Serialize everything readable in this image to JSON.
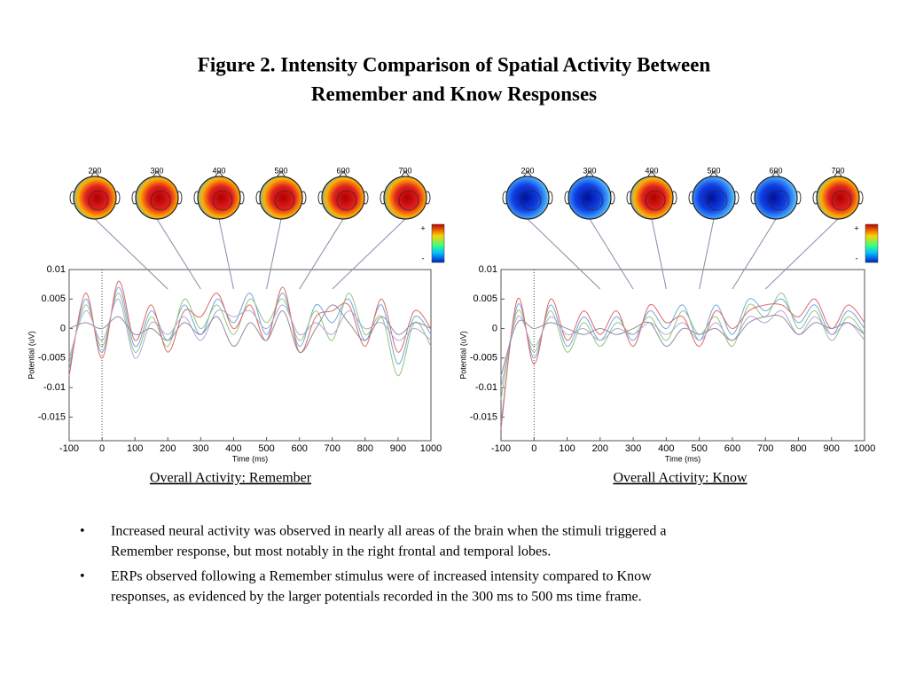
{
  "title_lines": [
    "Figure 2.  Intensity Comparison of Spatial Activity Between",
    "Remember and Know Responses"
  ],
  "bullets": [
    [
      "Increased neural activity was observed in nearly all areas of the brain when the stimuli triggered a",
      "Remember response, but most notably in the right frontal and temporal lobes."
    ],
    [
      "ERPs observed following a Remember stimulus were of increased intensity compared to Know",
      "responses, as evidenced by the larger potentials recorded in the 300 ms to 500 ms time frame."
    ]
  ],
  "bullet_symbol": "•",
  "chart_data": [
    {
      "type": "line",
      "caption": "Overall Activity: Remember",
      "x_label": "Time (ms)",
      "y_label": "Potential (uV)",
      "topomap_labels": [
        "200",
        "300",
        "400",
        "500",
        "600",
        "700"
      ],
      "colorbar_labels": [
        "+",
        "-"
      ],
      "x": [
        -100,
        -50,
        0,
        50,
        100,
        150,
        200,
        250,
        300,
        350,
        400,
        450,
        500,
        550,
        600,
        650,
        700,
        750,
        800,
        850,
        900,
        950,
        1000
      ],
      "xlim": [
        -100,
        1000
      ],
      "xticks": [
        -100,
        0,
        100,
        200,
        300,
        400,
        500,
        600,
        700,
        800,
        900,
        1000
      ],
      "ylim": [
        -0.019,
        0.01
      ],
      "yticks": [
        0.01,
        0.005,
        0,
        -0.005,
        -0.01,
        -0.015
      ],
      "series": [
        {
          "color": "#6fa8dc",
          "values": [
            -0.007,
            0.005,
            -0.004,
            0.007,
            -0.003,
            0.003,
            -0.002,
            0.004,
            -0.001,
            0.005,
            0.001,
            0.006,
            -0.001,
            0.006,
            -0.003,
            0.004,
            0.001,
            0.005,
            -0.002,
            0.004,
            -0.006,
            0.002,
            -0.001
          ]
        },
        {
          "color": "#93c47d",
          "values": [
            -0.006,
            0.004,
            -0.003,
            0.006,
            -0.004,
            0.002,
            -0.003,
            0.005,
            0,
            0.004,
            -0.001,
            0.005,
            0.001,
            0.005,
            -0.002,
            0.003,
            -0.002,
            0.006,
            -0.001,
            0.002,
            -0.008,
            0.001,
            -0.003
          ]
        },
        {
          "color": "#e06666",
          "values": [
            -0.008,
            0.006,
            -0.005,
            0.008,
            -0.002,
            0.004,
            -0.004,
            0.003,
            0.002,
            0.006,
            0,
            0.004,
            -0.002,
            0.007,
            -0.004,
            0.002,
            0.003,
            0.004,
            -0.003,
            0.005,
            -0.004,
            0.003,
            0
          ]
        },
        {
          "color": "#b4a7d6",
          "values": [
            -0.005,
            0.003,
            -0.002,
            0.005,
            -0.005,
            0.001,
            -0.001,
            0.002,
            -0.002,
            0.003,
            0.002,
            0.003,
            0,
            0.004,
            -0.001,
            0.001,
            -0.001,
            0.003,
            0,
            0.001,
            -0.002,
            0,
            -0.002
          ]
        },
        {
          "color": "#8e8e9e",
          "values": [
            0,
            0.001,
            0,
            0.002,
            -0.001,
            0,
            -0.002,
            0.001,
            -0.001,
            0.002,
            -0.003,
            0.001,
            -0.002,
            0.003,
            -0.004,
            0,
            0.004,
            0.001,
            -0.002,
            0.002,
            -0.001,
            0.001,
            0
          ]
        }
      ]
    },
    {
      "type": "line",
      "caption": "Overall Activity: Know",
      "x_label": "Time (ms)",
      "y_label": "Potential (uV)",
      "topomap_labels": [
        "200",
        "300",
        "400",
        "500",
        "600",
        "700"
      ],
      "colorbar_labels": [
        "+",
        "-"
      ],
      "x": [
        -100,
        -50,
        0,
        50,
        100,
        150,
        200,
        250,
        300,
        350,
        400,
        450,
        500,
        550,
        600,
        650,
        700,
        750,
        800,
        850,
        900,
        950,
        1000
      ],
      "xlim": [
        -100,
        1000
      ],
      "xticks": [
        -100,
        0,
        100,
        200,
        300,
        400,
        500,
        600,
        700,
        800,
        900,
        1000
      ],
      "ylim": [
        -0.019,
        0.01
      ],
      "yticks": [
        0.01,
        0.005,
        0,
        -0.005,
        -0.01,
        -0.015
      ],
      "series": [
        {
          "color": "#6fa8dc",
          "values": [
            -0.016,
            0.004,
            -0.005,
            0.004,
            -0.003,
            0.002,
            -0.002,
            0.002,
            -0.002,
            0.003,
            0,
            0.004,
            -0.002,
            0.004,
            -0.001,
            0.005,
            0.003,
            0.005,
            0.001,
            0.004,
            -0.001,
            0.003,
            0
          ]
        },
        {
          "color": "#93c47d",
          "values": [
            -0.012,
            0.003,
            -0.004,
            0.003,
            -0.004,
            0.001,
            -0.003,
            0.001,
            -0.001,
            0.002,
            -0.002,
            0.003,
            -0.001,
            0.002,
            -0.003,
            0.004,
            0.002,
            0.006,
            0,
            0.003,
            -0.002,
            0.002,
            -0.001
          ]
        },
        {
          "color": "#e06666",
          "values": [
            -0.017,
            0.005,
            -0.006,
            0.005,
            -0.002,
            0.003,
            -0.001,
            0.003,
            -0.003,
            0.004,
            0.001,
            0.002,
            -0.003,
            0.003,
            0,
            0.003,
            0.004,
            0.004,
            0.002,
            0.005,
            0,
            0.004,
            0.001
          ]
        },
        {
          "color": "#b4a7d6",
          "values": [
            -0.01,
            0.002,
            -0.003,
            0.002,
            -0.001,
            0,
            -0.002,
            0,
            -0.001,
            0.001,
            -0.001,
            0.001,
            -0.002,
            0.001,
            -0.002,
            0.002,
            0.001,
            0.003,
            -0.001,
            0.002,
            -0.001,
            0.001,
            -0.002
          ]
        },
        {
          "color": "#8e8e9e",
          "values": [
            -0.008,
            0.001,
            0,
            0.001,
            0,
            -0.001,
            0,
            -0.001,
            0,
            0.001,
            -0.003,
            0,
            -0.001,
            0,
            -0.002,
            0.001,
            0.002,
            0.002,
            -0.001,
            0.001,
            0,
            0.001,
            -0.001
          ]
        }
      ]
    }
  ]
}
